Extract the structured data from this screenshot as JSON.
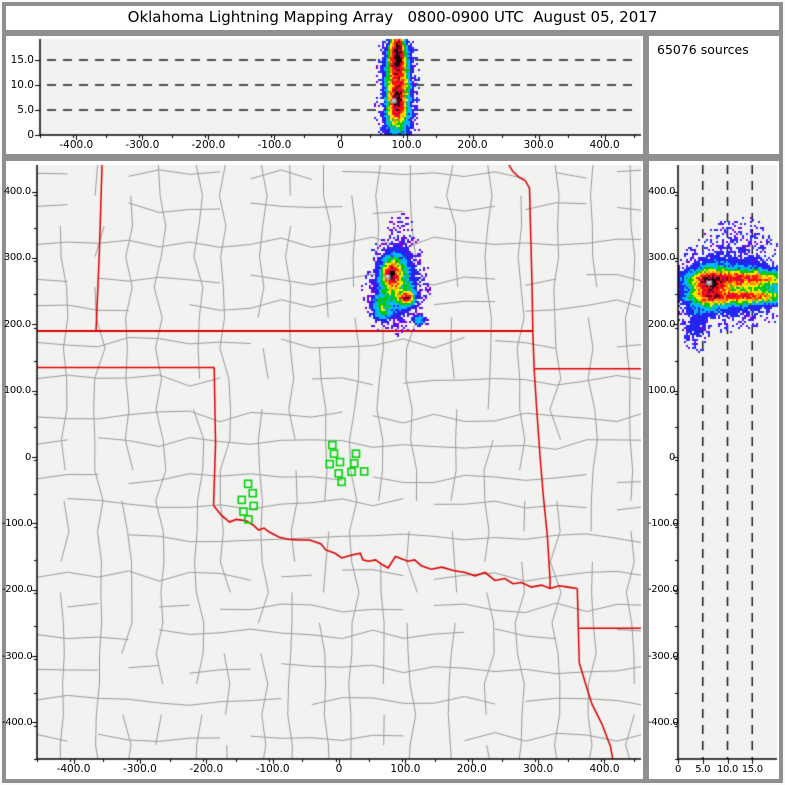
{
  "window": {
    "title": "Oklahoma Lightning Mapping Array   0800-0900 UTC  August 05, 2017"
  },
  "sources_panel": {
    "label": "65076 sources"
  },
  "colors": {
    "window_frame": "#8f8f8f",
    "panel_bg": "#ffffff",
    "plot_bg": "#f2f2f1",
    "axis": "#000000",
    "gridline": "#1a1a1a",
    "county_line": "#9b9b9b",
    "state_line": "#dd0000",
    "station": "#00d40a",
    "speckle_purple": "#7d00e0",
    "speckle_blue": "#2a2aff",
    "density_scale": [
      [
        6.6,
        "#17020a"
      ],
      [
        5.9,
        "#70001e"
      ],
      [
        4.9,
        "#e2003c"
      ],
      [
        4.0,
        "#ff1e00"
      ],
      [
        3.3,
        "#ff9100"
      ],
      [
        2.6,
        "#ffe800"
      ],
      [
        1.9,
        "#00c800"
      ],
      [
        1.25,
        "#00b8ff"
      ],
      [
        0.75,
        "#2424f0"
      ]
    ]
  },
  "counties": {
    "seed": 13,
    "v_min": 40,
    "v_var": 24,
    "h_min": 36,
    "h_var": 22,
    "seg": 46,
    "jitter": 6,
    "skip": 0.13
  },
  "chart_data": [
    {
      "id": "ew_altitude",
      "type": "heatmap",
      "description": "Lightning source density, east-west distance (km) vs altitude (km)",
      "x_range": [
        -455,
        455
      ],
      "y_range": [
        0,
        19.2
      ],
      "x_ticks": {
        "minor_step": 50,
        "major": [
          {
            "v": -400,
            "label": "-400.0"
          },
          {
            "v": -300,
            "label": "-300.0"
          },
          {
            "v": -200,
            "label": "-200.0"
          },
          {
            "v": -100,
            "label": "-100.0"
          },
          {
            "v": 0,
            "label": "0"
          },
          {
            "v": 100,
            "label": "100.0"
          },
          {
            "v": 200,
            "label": "200.0"
          },
          {
            "v": 300,
            "label": "300.0"
          },
          {
            "v": 400,
            "label": "400.0"
          }
        ]
      },
      "y_ticks": {
        "minor_step": 0,
        "major": [
          {
            "v": 0,
            "label": "0"
          },
          {
            "v": 5,
            "label": "5.0"
          },
          {
            "v": 10,
            "label": "10.0"
          },
          {
            "v": 15,
            "label": "15.0"
          }
        ]
      },
      "gridlines": {
        "axis": "y",
        "values": [
          5,
          10,
          15
        ],
        "style": "dashed"
      },
      "density_cores": [
        [
          85,
          12,
          10,
          5.5,
          3.2
        ],
        [
          83,
          16,
          5.5,
          2.0,
          3.2
        ],
        [
          84,
          6.6,
          6.5,
          1.7,
          3.0
        ],
        [
          87,
          18.5,
          4.5,
          2.5,
          2.2
        ],
        [
          86,
          10,
          14,
          6.5,
          1.2
        ],
        [
          85,
          8,
          20,
          8,
          0.55
        ],
        [
          85,
          3.2,
          16,
          2.2,
          0.8
        ]
      ],
      "gray_spots": [
        [
          80.5,
          6.9
        ]
      ],
      "speckle_purple_ratio": 0.3
    },
    {
      "id": "plan_view",
      "type": "heatmap",
      "description": "Plan view: lightning source density over Oklahoma region, east-west vs north-south distance (km)",
      "x_range": [
        -455,
        455
      ],
      "y_range": [
        -455,
        440
      ],
      "x_ticks": {
        "minor_step": 50,
        "major": [
          {
            "v": -400,
            "label": "-400.0"
          },
          {
            "v": -300,
            "label": "-300.0"
          },
          {
            "v": -200,
            "label": "-200.0"
          },
          {
            "v": -100,
            "label": "-100.0"
          },
          {
            "v": 0,
            "label": "0"
          },
          {
            "v": 100,
            "label": "100.0"
          },
          {
            "v": 200,
            "label": "200.0"
          },
          {
            "v": 300,
            "label": "300.0"
          },
          {
            "v": 400,
            "label": "400.0"
          }
        ]
      },
      "y_ticks": {
        "minor_step": 50,
        "major": [
          {
            "v": -400,
            "label": "-400.0"
          },
          {
            "v": -300,
            "label": "-300.0"
          },
          {
            "v": -200,
            "label": "-200.0"
          },
          {
            "v": -100,
            "label": "-100.0"
          },
          {
            "v": 0,
            "label": "0"
          },
          {
            "v": 100,
            "label": "100.0"
          },
          {
            "v": 200,
            "label": "200.0"
          },
          {
            "v": 300,
            "label": "300.0"
          },
          {
            "v": 400,
            "label": "400.0"
          }
        ]
      },
      "gridlines": {
        "axis": "none",
        "values": [],
        "style": "dashed"
      },
      "density_cores": [
        [
          77,
          276,
          9,
          15,
          3.4
        ],
        [
          77,
          277,
          4.5,
          6,
          2.6
        ],
        [
          100,
          241,
          8.5,
          6.5,
          3.2
        ],
        [
          101,
          241,
          3.5,
          2.8,
          2.2
        ],
        [
          86,
          262,
          21,
          30,
          1.5
        ],
        [
          62,
          225,
          10,
          12,
          1.6
        ],
        [
          120,
          207,
          7,
          6,
          1.5
        ],
        [
          83,
          264,
          30,
          48,
          0.55
        ],
        [
          93,
          338,
          13,
          26,
          0.38
        ]
      ],
      "gray_spots": [
        [
          73,
          272
        ]
      ],
      "speckle_purple_ratio": 0.6,
      "stations": [
        [
          -10,
          18
        ],
        [
          -7.5,
          5
        ],
        [
          -14,
          -10.6
        ],
        [
          1.5,
          -7.6
        ],
        [
          25.6,
          5
        ],
        [
          23,
          -9.5
        ],
        [
          -0.5,
          -24.7
        ],
        [
          19,
          -22.2
        ],
        [
          38,
          -21.7
        ],
        [
          4,
          -37.4
        ],
        [
          -137,
          -40.4
        ],
        [
          -130,
          -54.5
        ],
        [
          -146.5,
          -64.6
        ],
        [
          -128.5,
          -73.7
        ],
        [
          -144,
          -82.2
        ],
        [
          -136.5,
          -93.9
        ]
      ],
      "state_borders": [
        {
          "name": "kansas-west",
          "w": 1.5,
          "pts": [
            [
              -357,
              440
            ],
            [
              -361,
              310
            ],
            [
              -366,
              191
            ]
          ]
        },
        {
          "name": "37N-kansas-oklahoma",
          "w": 2,
          "pts": [
            [
              -455,
              190
            ],
            [
              292,
              190
            ]
          ]
        },
        {
          "name": "panhandle-south",
          "w": 1.5,
          "pts": [
            [
              -455,
              135
            ],
            [
              -188,
              135
            ]
          ]
        },
        {
          "name": "oklahoma-west-100W",
          "w": 1.5,
          "pts": [
            [
              -188,
              135
            ],
            [
              -186,
              20
            ],
            [
              -189,
              -73
            ]
          ]
        },
        {
          "name": "red-river",
          "w": 1.6,
          "pts": [
            [
              -189,
              -73
            ],
            [
              -177,
              -88
            ],
            [
              -165,
              -98
            ],
            [
              -155,
              -94
            ],
            [
              -140,
              -96
            ],
            [
              -130,
              -102
            ],
            [
              -121,
              -110
            ],
            [
              -113,
              -107
            ],
            [
              -105,
              -113
            ],
            [
              -90,
              -121
            ],
            [
              -77,
              -124
            ],
            [
              -62,
              -125
            ],
            [
              -44,
              -125
            ],
            [
              -27,
              -131
            ],
            [
              -20,
              -140
            ],
            [
              -6,
              -145
            ],
            [
              4,
              -152
            ],
            [
              18,
              -148
            ],
            [
              32,
              -145
            ],
            [
              36,
              -155
            ],
            [
              44,
              -157
            ],
            [
              55,
              -155
            ],
            [
              65,
              -162
            ],
            [
              74,
              -167
            ],
            [
              85,
              -150
            ],
            [
              93,
              -153
            ],
            [
              104,
              -157
            ],
            [
              114,
              -155
            ],
            [
              124,
              -164
            ],
            [
              139,
              -169
            ],
            [
              155,
              -166
            ],
            [
              172,
              -171
            ],
            [
              190,
              -174
            ],
            [
              205,
              -179
            ],
            [
              220,
              -174
            ],
            [
              235,
              -186
            ],
            [
              250,
              -183
            ],
            [
              262,
              -191
            ],
            [
              275,
              -189
            ],
            [
              290,
              -196
            ],
            [
              305,
              -193
            ],
            [
              318,
              -198
            ],
            [
              332,
              -194
            ],
            [
              345,
              -196
            ],
            [
              359,
              -198
            ]
          ]
        },
        {
          "name": "missouri-kansas",
          "w": 1.5,
          "pts": [
            [
              255,
              442
            ],
            [
              262,
              430
            ],
            [
              272,
              421
            ],
            [
              281,
              416
            ],
            [
              287,
              405
            ],
            [
              289,
              330
            ],
            [
              291,
              250
            ],
            [
              292,
              190
            ]
          ]
        },
        {
          "name": "oklahoma-missouri",
          "w": 1.5,
          "pts": [
            [
              292,
              190
            ],
            [
              294,
              133
            ]
          ]
        },
        {
          "name": "arkansas-missouri",
          "w": 1.5,
          "pts": [
            [
              294,
              133
            ],
            [
              455,
              133
            ]
          ]
        },
        {
          "name": "oklahoma-arkansas",
          "w": 1.5,
          "pts": [
            [
              294,
              133
            ],
            [
              298,
              70
            ],
            [
              303,
              0
            ],
            [
              308,
              -60
            ],
            [
              314,
              -120
            ],
            [
              318,
              -185
            ],
            [
              318,
              -198
            ]
          ]
        },
        {
          "name": "texas-arkansas",
          "w": 1.5,
          "pts": [
            [
              359,
              -198
            ],
            [
              362,
              -310
            ]
          ]
        },
        {
          "name": "arkansas-louisiana",
          "w": 1.5,
          "pts": [
            [
              362,
              -258
            ],
            [
              455,
              -258
            ]
          ]
        },
        {
          "name": "texas-louisiana",
          "w": 1.5,
          "pts": [
            [
              362,
              -310
            ],
            [
              371,
              -340
            ],
            [
              381,
              -372
            ],
            [
              396,
              -402
            ],
            [
              409,
              -436
            ],
            [
              413,
              -458
            ]
          ]
        }
      ]
    },
    {
      "id": "altitude_ns",
      "type": "heatmap",
      "description": "Lightning source density, altitude (km) vs north-south distance (km)",
      "x_range": [
        0,
        20
      ],
      "y_range": [
        -455,
        440
      ],
      "x_ticks": {
        "minor_step": 0,
        "major": [
          {
            "v": 0,
            "label": "0"
          },
          {
            "v": 5,
            "label": "5.0"
          },
          {
            "v": 10,
            "label": "10.0"
          },
          {
            "v": 15,
            "label": "15.0"
          }
        ]
      },
      "y_ticks": {
        "minor_step": 50,
        "major": [
          {
            "v": -400,
            "label": "-400.0"
          },
          {
            "v": -300,
            "label": "-300.0"
          },
          {
            "v": -200,
            "label": "-200.0"
          },
          {
            "v": -100,
            "label": "-100.0"
          },
          {
            "v": 0,
            "label": "0"
          },
          {
            "v": 100,
            "label": "100.0"
          },
          {
            "v": 200,
            "label": "200.0"
          },
          {
            "v": 300,
            "label": "300.0"
          },
          {
            "v": 400,
            "label": "400.0"
          }
        ]
      },
      "gridlines": {
        "axis": "x",
        "values": [
          5,
          10,
          15
        ],
        "style": "dashed"
      },
      "density_cores": [
        [
          12.5,
          270,
          6.5,
          7.5,
          3.0
        ],
        [
          13,
          243,
          6.5,
          6.0,
          2.9
        ],
        [
          6.3,
          256,
          2.0,
          20,
          2.6
        ],
        [
          6.3,
          264,
          1.6,
          8,
          1.6
        ],
        [
          11,
          257,
          7.5,
          26,
          1.3
        ],
        [
          11,
          258,
          9,
          42,
          0.5
        ],
        [
          12,
          330,
          5,
          30,
          0.35
        ],
        [
          3.2,
          195,
          1.6,
          22,
          0.8
        ]
      ],
      "gray_spots": [
        [
          6.3,
          263
        ]
      ],
      "speckle_purple_ratio": 0.25
    }
  ]
}
